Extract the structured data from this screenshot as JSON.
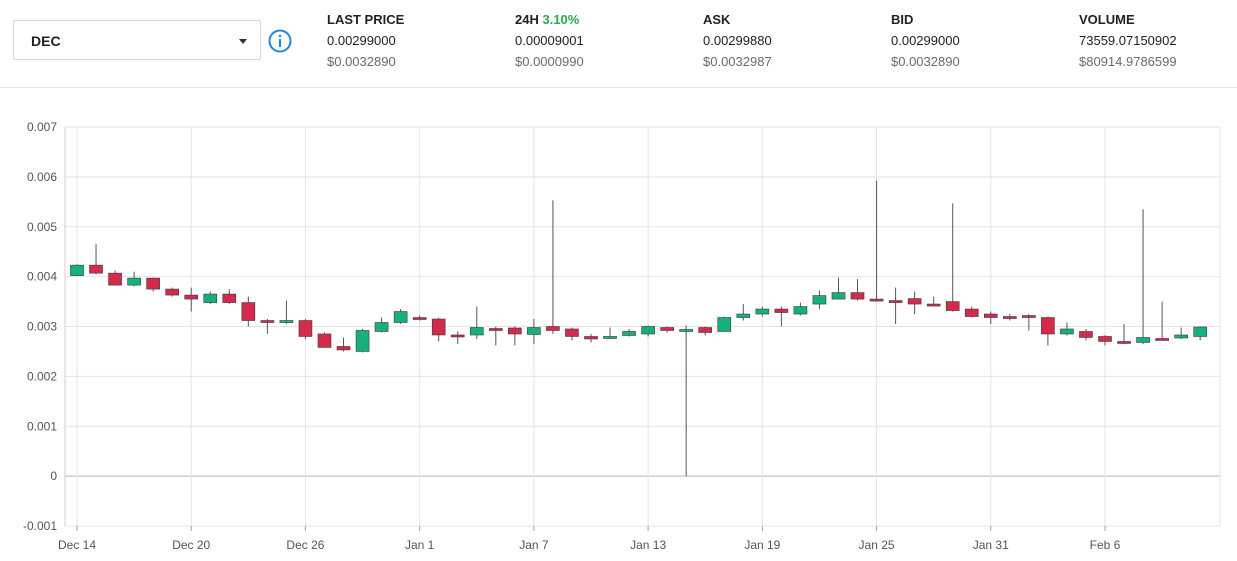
{
  "selector": {
    "value": "DEC"
  },
  "stats": {
    "last_price": {
      "label": "LAST PRICE",
      "value": "0.00299000",
      "usd": "$0.0032890"
    },
    "change_24h": {
      "label": "24H",
      "percent": "3.10%",
      "value": "0.00009001",
      "usd": "$0.0000990"
    },
    "ask": {
      "label": "ASK",
      "value": "0.00299880",
      "usd": "$0.0032987"
    },
    "bid": {
      "label": "BID",
      "value": "0.00299000",
      "usd": "$0.0032890"
    },
    "volume": {
      "label": "VOLUME",
      "value": "73559.07150902",
      "usd": "$80914.9786599"
    }
  },
  "colors": {
    "up": "#17b07b",
    "down": "#d42a4b",
    "accent": "#1e88e5",
    "change": "#2ea84a"
  },
  "icons": {
    "info": "info-circle-icon",
    "dropdown": "caret-down-icon"
  },
  "chart_data": {
    "type": "candlestick",
    "ylim": [
      -0.001,
      0.007
    ],
    "y_ticks": [
      "0.007",
      "0.006",
      "0.005",
      "0.004",
      "0.003",
      "0.002",
      "0.001",
      "0",
      "-0.001"
    ],
    "y_tick_values": [
      0.007,
      0.006,
      0.005,
      0.004,
      0.003,
      0.002,
      0.001,
      0,
      -0.001
    ],
    "x_ticks": [
      "Dec 14",
      "Dec 20",
      "Dec 26",
      "Jan 1",
      "Jan 7",
      "Jan 13",
      "Jan 19",
      "Jan 25",
      "Jan 31",
      "Feb 6"
    ],
    "x_tick_index": [
      0,
      6,
      12,
      18,
      24,
      30,
      36,
      42,
      48,
      54
    ],
    "grid": true,
    "candles": [
      {
        "date": "Dec 14",
        "o": 0.00402,
        "h": 0.00425,
        "l": 0.00402,
        "c": 0.00423
      },
      {
        "date": "Dec 15",
        "o": 0.00423,
        "h": 0.00465,
        "l": 0.00405,
        "c": 0.00407
      },
      {
        "date": "Dec 16",
        "o": 0.00407,
        "h": 0.00412,
        "l": 0.00382,
        "c": 0.00383
      },
      {
        "date": "Dec 17",
        "o": 0.00383,
        "h": 0.0041,
        "l": 0.0038,
        "c": 0.00397
      },
      {
        "date": "Dec 18",
        "o": 0.00397,
        "h": 0.00398,
        "l": 0.0037,
        "c": 0.00375
      },
      {
        "date": "Dec 19",
        "o": 0.00375,
        "h": 0.00378,
        "l": 0.0036,
        "c": 0.00363
      },
      {
        "date": "Dec 20",
        "o": 0.00363,
        "h": 0.00378,
        "l": 0.0033,
        "c": 0.00355
      },
      {
        "date": "Dec 21",
        "o": 0.00348,
        "h": 0.0037,
        "l": 0.00345,
        "c": 0.00365
      },
      {
        "date": "Dec 22",
        "o": 0.00365,
        "h": 0.00375,
        "l": 0.00345,
        "c": 0.00348
      },
      {
        "date": "Dec 23",
        "o": 0.00348,
        "h": 0.0036,
        "l": 0.003,
        "c": 0.00312
      },
      {
        "date": "Dec 24",
        "o": 0.00312,
        "h": 0.00315,
        "l": 0.00285,
        "c": 0.00308
      },
      {
        "date": "Dec 25",
        "o": 0.00308,
        "h": 0.00352,
        "l": 0.00305,
        "c": 0.00312
      },
      {
        "date": "Dec 26",
        "o": 0.00312,
        "h": 0.00315,
        "l": 0.00275,
        "c": 0.0028
      },
      {
        "date": "Dec 27",
        "o": 0.00285,
        "h": 0.00288,
        "l": 0.00258,
        "c": 0.00258
      },
      {
        "date": "Dec 28",
        "o": 0.0026,
        "h": 0.00278,
        "l": 0.0025,
        "c": 0.00253
      },
      {
        "date": "Dec 29",
        "o": 0.0025,
        "h": 0.00295,
        "l": 0.00248,
        "c": 0.00292
      },
      {
        "date": "Dec 30",
        "o": 0.0029,
        "h": 0.00318,
        "l": 0.00288,
        "c": 0.00308
      },
      {
        "date": "Dec 31",
        "o": 0.00308,
        "h": 0.00335,
        "l": 0.00305,
        "c": 0.0033
      },
      {
        "date": "Jan 1",
        "o": 0.00318,
        "h": 0.00322,
        "l": 0.00312,
        "c": 0.00314
      },
      {
        "date": "Jan 2",
        "o": 0.00315,
        "h": 0.00318,
        "l": 0.0027,
        "c": 0.00283
      },
      {
        "date": "Jan 3",
        "o": 0.00283,
        "h": 0.0029,
        "l": 0.00265,
        "c": 0.0028
      },
      {
        "date": "Jan 4",
        "o": 0.00283,
        "h": 0.0034,
        "l": 0.00275,
        "c": 0.00298
      },
      {
        "date": "Jan 5",
        "o": 0.00296,
        "h": 0.003,
        "l": 0.00262,
        "c": 0.00294
      },
      {
        "date": "Jan 6",
        "o": 0.00297,
        "h": 0.003,
        "l": 0.00262,
        "c": 0.00285
      },
      {
        "date": "Jan 7",
        "o": 0.00284,
        "h": 0.00315,
        "l": 0.00265,
        "c": 0.00298
      },
      {
        "date": "Jan 8",
        "o": 0.003,
        "h": 0.00553,
        "l": 0.00285,
        "c": 0.00292
      },
      {
        "date": "Jan 9",
        "o": 0.00295,
        "h": 0.00298,
        "l": 0.00272,
        "c": 0.0028
      },
      {
        "date": "Jan 10",
        "o": 0.0028,
        "h": 0.00285,
        "l": 0.00268,
        "c": 0.00275
      },
      {
        "date": "Jan 11",
        "o": 0.00278,
        "h": 0.00298,
        "l": 0.00275,
        "c": 0.0028
      },
      {
        "date": "Jan 12",
        "o": 0.00282,
        "h": 0.00295,
        "l": 0.0028,
        "c": 0.0029
      },
      {
        "date": "Jan 13",
        "o": 0.00285,
        "h": 0.00302,
        "l": 0.0028,
        "c": 0.003
      },
      {
        "date": "Jan 14",
        "o": 0.00298,
        "h": 0.003,
        "l": 0.00288,
        "c": 0.00292
      },
      {
        "date": "Jan 15",
        "o": 0.00294,
        "h": 0.00302,
        "l": 0.0,
        "c": 0.00294
      },
      {
        "date": "Jan 16",
        "o": 0.00298,
        "h": 0.003,
        "l": 0.00282,
        "c": 0.00288
      },
      {
        "date": "Jan 17",
        "o": 0.0029,
        "h": 0.0032,
        "l": 0.0029,
        "c": 0.00318
      },
      {
        "date": "Jan 18",
        "o": 0.00318,
        "h": 0.00345,
        "l": 0.00312,
        "c": 0.00325
      },
      {
        "date": "Jan 19",
        "o": 0.00325,
        "h": 0.0034,
        "l": 0.0032,
        "c": 0.00335
      },
      {
        "date": "Jan 20",
        "o": 0.00335,
        "h": 0.0034,
        "l": 0.003,
        "c": 0.00328
      },
      {
        "date": "Jan 21",
        "o": 0.00325,
        "h": 0.00348,
        "l": 0.00322,
        "c": 0.0034
      },
      {
        "date": "Jan 22",
        "o": 0.00345,
        "h": 0.00372,
        "l": 0.00335,
        "c": 0.00362
      },
      {
        "date": "Jan 23",
        "o": 0.00355,
        "h": 0.00398,
        "l": 0.00355,
        "c": 0.00368
      },
      {
        "date": "Jan 24",
        "o": 0.00368,
        "h": 0.00395,
        "l": 0.00352,
        "c": 0.00355
      },
      {
        "date": "Jan 25",
        "o": 0.00355,
        "h": 0.00592,
        "l": 0.0035,
        "c": 0.00352
      },
      {
        "date": "Jan 26",
        "o": 0.00352,
        "h": 0.00378,
        "l": 0.00305,
        "c": 0.0035
      },
      {
        "date": "Jan 27",
        "o": 0.00356,
        "h": 0.0037,
        "l": 0.00325,
        "c": 0.00345
      },
      {
        "date": "Jan 28",
        "o": 0.00345,
        "h": 0.0036,
        "l": 0.0034,
        "c": 0.00342
      },
      {
        "date": "Jan 29",
        "o": 0.0035,
        "h": 0.00547,
        "l": 0.0033,
        "c": 0.00332
      },
      {
        "date": "Jan 30",
        "o": 0.00335,
        "h": 0.0034,
        "l": 0.00318,
        "c": 0.0032
      },
      {
        "date": "Jan 31",
        "o": 0.00325,
        "h": 0.0033,
        "l": 0.00305,
        "c": 0.00318
      },
      {
        "date": "Feb 1",
        "o": 0.0032,
        "h": 0.00325,
        "l": 0.00312,
        "c": 0.00318
      },
      {
        "date": "Feb 2",
        "o": 0.00322,
        "h": 0.00325,
        "l": 0.00292,
        "c": 0.00318
      },
      {
        "date": "Feb 3",
        "o": 0.00318,
        "h": 0.0032,
        "l": 0.00262,
        "c": 0.00285
      },
      {
        "date": "Feb 4",
        "o": 0.00285,
        "h": 0.00308,
        "l": 0.00282,
        "c": 0.00295
      },
      {
        "date": "Feb 5",
        "o": 0.0029,
        "h": 0.00295,
        "l": 0.00272,
        "c": 0.00278
      },
      {
        "date": "Feb 6",
        "o": 0.0028,
        "h": 0.00283,
        "l": 0.00262,
        "c": 0.0027
      },
      {
        "date": "Feb 7",
        "o": 0.0027,
        "h": 0.00305,
        "l": 0.00265,
        "c": 0.00268
      },
      {
        "date": "Feb 8",
        "o": 0.00268,
        "h": 0.00535,
        "l": 0.00265,
        "c": 0.00278
      },
      {
        "date": "Feb 9",
        "o": 0.00276,
        "h": 0.0035,
        "l": 0.00272,
        "c": 0.00275
      },
      {
        "date": "Feb 10",
        "o": 0.00277,
        "h": 0.00298,
        "l": 0.00275,
        "c": 0.00283
      },
      {
        "date": "Feb 11",
        "o": 0.0028,
        "h": 0.003,
        "l": 0.00272,
        "c": 0.00299
      }
    ]
  }
}
